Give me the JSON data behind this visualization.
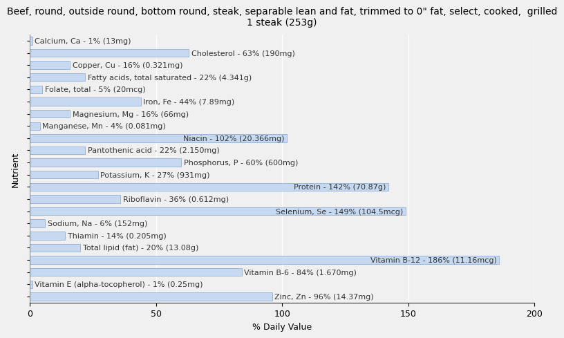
{
  "title": "Beef, round, outside round, bottom round, steak, separable lean and fat, trimmed to 0\" fat, select, cooked,  grilled\n1 steak (253g)",
  "xlabel": "% Daily Value",
  "ylabel": "Nutrient",
  "nutrients": [
    "Calcium, Ca - 1% (13mg)",
    "Cholesterol - 63% (190mg)",
    "Copper, Cu - 16% (0.321mg)",
    "Fatty acids, total saturated - 22% (4.341g)",
    "Folate, total - 5% (20mcg)",
    "Iron, Fe - 44% (7.89mg)",
    "Magnesium, Mg - 16% (66mg)",
    "Manganese, Mn - 4% (0.081mg)",
    "Niacin - 102% (20.366mg)",
    "Pantothenic acid - 22% (2.150mg)",
    "Phosphorus, P - 60% (600mg)",
    "Potassium, K - 27% (931mg)",
    "Protein - 142% (70.87g)",
    "Riboflavin - 36% (0.612mg)",
    "Selenium, Se - 149% (104.5mcg)",
    "Sodium, Na - 6% (152mg)",
    "Thiamin - 14% (0.205mg)",
    "Total lipid (fat) - 20% (13.08g)",
    "Vitamin B-12 - 186% (11.16mcg)",
    "Vitamin B-6 - 84% (1.670mg)",
    "Vitamin E (alpha-tocopherol) - 1% (0.25mg)",
    "Zinc, Zn - 96% (14.37mg)"
  ],
  "values": [
    1,
    63,
    16,
    22,
    5,
    44,
    16,
    4,
    102,
    22,
    60,
    27,
    142,
    36,
    149,
    6,
    14,
    20,
    186,
    84,
    1,
    96
  ],
  "bar_color": "#c6d9f1",
  "bar_edge_color": "#7da6d4",
  "background_color": "#f0f0f0",
  "plot_bg_color": "#f0f0f0",
  "xlim": [
    0,
    200
  ],
  "xticks": [
    0,
    50,
    100,
    150,
    200
  ],
  "title_fontsize": 10,
  "axis_label_fontsize": 9,
  "tick_fontsize": 9,
  "bar_label_fontsize": 8,
  "bar_height": 0.65,
  "label_threshold": 100
}
